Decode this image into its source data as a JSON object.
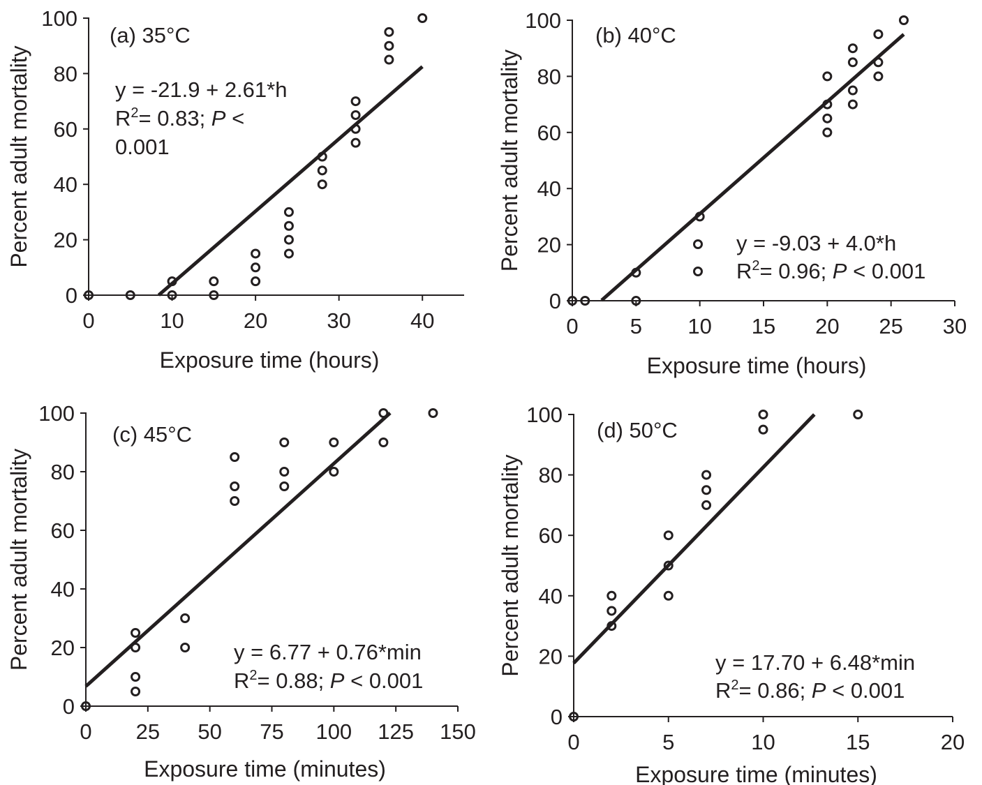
{
  "chart_data": [
    {
      "type": "scatter",
      "title": "(a) 35°C",
      "xlabel": "Exposure time (hours)",
      "ylabel": "Percent adult mortality",
      "xlim": [
        0,
        45
      ],
      "ylim": [
        0,
        100
      ],
      "xticks": [
        "0",
        "10",
        "20",
        "30",
        "40"
      ],
      "yticks": [
        "0",
        "20",
        "40",
        "60",
        "80",
        "100"
      ],
      "points": [
        [
          0,
          0
        ],
        [
          5,
          0
        ],
        [
          10,
          0
        ],
        [
          10,
          5
        ],
        [
          15,
          0
        ],
        [
          15,
          5
        ],
        [
          20,
          5
        ],
        [
          20,
          10
        ],
        [
          20,
          15
        ],
        [
          24,
          15
        ],
        [
          24,
          20
        ],
        [
          24,
          25
        ],
        [
          24,
          30
        ],
        [
          28,
          40
        ],
        [
          28,
          45
        ],
        [
          28,
          50
        ],
        [
          32,
          55
        ],
        [
          32,
          60
        ],
        [
          32,
          65
        ],
        [
          32,
          70
        ],
        [
          36,
          85
        ],
        [
          36,
          90
        ],
        [
          36,
          95
        ],
        [
          40,
          100
        ]
      ],
      "fit": {
        "intercept": -21.9,
        "slope": 2.61,
        "x_range": [
          8.4,
          40
        ]
      },
      "equation": [
        "y = -21.9 + 2.61*h",
        "R",
        "2",
        "= 0.83; ",
        "P",
        " <",
        "0.001"
      ]
    },
    {
      "type": "scatter",
      "title": "(b) 40°C",
      "xlabel": "Exposure time (hours)",
      "ylabel": "Percent adult mortality",
      "xlim": [
        0,
        30
      ],
      "ylim": [
        0,
        100
      ],
      "xticks": [
        "0",
        "5",
        "10",
        "15",
        "20",
        "25",
        "30"
      ],
      "yticks": [
        "0",
        "20",
        "40",
        "60",
        "80",
        "100"
      ],
      "points": [
        [
          0,
          0
        ],
        [
          1,
          0
        ],
        [
          5,
          0
        ],
        [
          5,
          10
        ],
        [
          10,
          30
        ],
        [
          20,
          60
        ],
        [
          20,
          65
        ],
        [
          20,
          70
        ],
        [
          20,
          80
        ],
        [
          22,
          70
        ],
        [
          22,
          75
        ],
        [
          22,
          85
        ],
        [
          22,
          90
        ],
        [
          24,
          80
        ],
        [
          24,
          85
        ],
        [
          24,
          95
        ],
        [
          26,
          100
        ]
      ],
      "fit": {
        "intercept": -9.03,
        "slope": 4.0,
        "x_range": [
          2.3,
          26
        ]
      },
      "equation": [
        "y = -9.03 + 4.0*h",
        "R",
        "2",
        "= 0.96; ",
        "P",
        " < 0.001"
      ]
    },
    {
      "type": "scatter",
      "title": "(c) 45°C",
      "xlabel": "Exposure time (minutes)",
      "ylabel": "Percent adult mortality",
      "xlim": [
        0,
        150
      ],
      "ylim": [
        0,
        100
      ],
      "xticks": [
        "0",
        "25",
        "50",
        "75",
        "100",
        "125",
        "150"
      ],
      "yticks": [
        "0",
        "20",
        "40",
        "60",
        "80",
        "100"
      ],
      "points": [
        [
          0,
          0
        ],
        [
          20,
          5
        ],
        [
          20,
          10
        ],
        [
          20,
          20
        ],
        [
          20,
          25
        ],
        [
          40,
          20
        ],
        [
          40,
          30
        ],
        [
          60,
          70
        ],
        [
          60,
          75
        ],
        [
          60,
          85
        ],
        [
          80,
          75
        ],
        [
          80,
          80
        ],
        [
          80,
          90
        ],
        [
          100,
          80
        ],
        [
          100,
          90
        ],
        [
          120,
          90
        ],
        [
          120,
          100
        ],
        [
          140,
          100
        ]
      ],
      "fit": {
        "intercept": 6.77,
        "slope": 0.76,
        "x_range": [
          0,
          122.7
        ]
      },
      "equation": [
        "y = 6.77 + 0.76*min",
        "R",
        "2",
        "= 0.88; ",
        "P",
        " < 0.001"
      ]
    },
    {
      "type": "scatter",
      "title": "(d) 50°C",
      "xlabel": "Exposure time (minutes)",
      "ylabel": "Percent adult mortality",
      "xlim": [
        0,
        20
      ],
      "ylim": [
        0,
        100
      ],
      "xticks": [
        "0",
        "5",
        "10",
        "15",
        "20"
      ],
      "yticks": [
        "0",
        "20",
        "40",
        "60",
        "80",
        "100"
      ],
      "points": [
        [
          0,
          0
        ],
        [
          2,
          30
        ],
        [
          2,
          35
        ],
        [
          2,
          40
        ],
        [
          5,
          40
        ],
        [
          5,
          50
        ],
        [
          5,
          60
        ],
        [
          7,
          70
        ],
        [
          7,
          75
        ],
        [
          7,
          80
        ],
        [
          10,
          95
        ],
        [
          10,
          100
        ],
        [
          15,
          100
        ]
      ],
      "fit": {
        "intercept": 17.7,
        "slope": 6.48,
        "x_range": [
          0,
          12.7
        ]
      },
      "equation": [
        "y = 17.70 + 6.48*min",
        "R",
        "2",
        "= 0.86; ",
        "P",
        " < 0.001"
      ]
    }
  ]
}
